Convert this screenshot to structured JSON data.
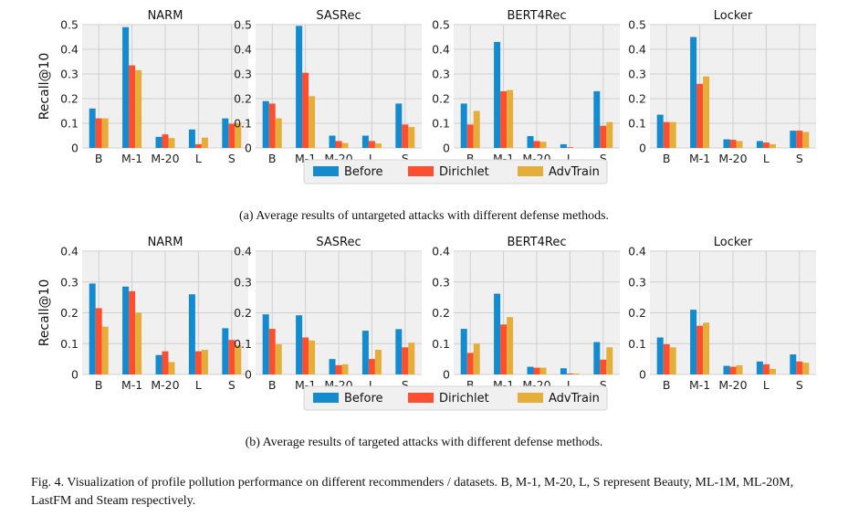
{
  "colors": {
    "Before": "#158bcf",
    "Dirichlet": "#fc4f30",
    "AdvTrain": "#e5ae38",
    "plot_bg": "#f0f0f0",
    "grid": "#cfcfcf"
  },
  "ylabel": "Recall@10",
  "legend": [
    "Before",
    "Dirichlet",
    "AdvTrain"
  ],
  "captions": {
    "a": "(a) Average results of untargeted attacks with different defense methods.",
    "b": "(b) Average results of targeted attacks with different defense methods.",
    "figure": "Fig. 4.  Visualization of profile pollution performance on different recommenders / datasets. B, M-1, M-20, L, S represent Beauty, ML-1M, ML-20M, LastFM and Steam respectively."
  },
  "chart_data": [
    {
      "type": "bar",
      "group": "a",
      "title": "NARM",
      "ylabel": "Recall@10",
      "categories": [
        "B",
        "M-1",
        "M-20",
        "L",
        "S"
      ],
      "ylim": [
        0,
        0.5
      ],
      "yticks": [
        0,
        0.1,
        0.2,
        0.3,
        0.4,
        0.5
      ],
      "series": [
        {
          "name": "Before",
          "values": [
            0.16,
            0.49,
            0.045,
            0.075,
            0.12
          ]
        },
        {
          "name": "Dirichlet",
          "values": [
            0.12,
            0.335,
            0.055,
            0.015,
            0.098
          ]
        },
        {
          "name": "AdvTrain",
          "values": [
            0.12,
            0.315,
            0.04,
            0.042,
            0.102
          ]
        }
      ]
    },
    {
      "type": "bar",
      "group": "a",
      "title": "SASRec",
      "categories": [
        "B",
        "M-1",
        "M-20",
        "L",
        "S"
      ],
      "ylim": [
        0,
        0.5
      ],
      "yticks": [
        0,
        0.1,
        0.2,
        0.3,
        0.4,
        0.5
      ],
      "series": [
        {
          "name": "Before",
          "values": [
            0.19,
            0.495,
            0.05,
            0.05,
            0.18
          ]
        },
        {
          "name": "Dirichlet",
          "values": [
            0.18,
            0.305,
            0.028,
            0.028,
            0.095
          ]
        },
        {
          "name": "AdvTrain",
          "values": [
            0.12,
            0.21,
            0.02,
            0.018,
            0.085
          ]
        }
      ]
    },
    {
      "type": "bar",
      "group": "a",
      "title": "BERT4Rec",
      "categories": [
        "B",
        "M-1",
        "M-20",
        "L",
        "S"
      ],
      "ylim": [
        0,
        0.5
      ],
      "yticks": [
        0,
        0.1,
        0.2,
        0.3,
        0.4,
        0.5
      ],
      "series": [
        {
          "name": "Before",
          "values": [
            0.18,
            0.43,
            0.048,
            0.015,
            0.23
          ]
        },
        {
          "name": "Dirichlet",
          "values": [
            0.095,
            0.23,
            0.028,
            0.003,
            0.09
          ]
        },
        {
          "name": "AdvTrain",
          "values": [
            0.15,
            0.235,
            0.025,
            0.0,
            0.105
          ]
        }
      ]
    },
    {
      "type": "bar",
      "group": "a",
      "title": "Locker",
      "categories": [
        "B",
        "M-1",
        "M-20",
        "L",
        "S"
      ],
      "ylim": [
        0,
        0.5
      ],
      "yticks": [
        0,
        0.1,
        0.2,
        0.3,
        0.4,
        0.5
      ],
      "series": [
        {
          "name": "Before",
          "values": [
            0.135,
            0.45,
            0.035,
            0.028,
            0.07
          ]
        },
        {
          "name": "Dirichlet",
          "values": [
            0.105,
            0.26,
            0.033,
            0.022,
            0.07
          ]
        },
        {
          "name": "AdvTrain",
          "values": [
            0.105,
            0.29,
            0.028,
            0.015,
            0.065
          ]
        }
      ]
    },
    {
      "type": "bar",
      "group": "b",
      "title": "NARM",
      "ylabel": "Recall@10",
      "categories": [
        "B",
        "M-1",
        "M-20",
        "L",
        "S"
      ],
      "ylim": [
        0,
        0.4
      ],
      "yticks": [
        0,
        0.1,
        0.2,
        0.3,
        0.4
      ],
      "series": [
        {
          "name": "Before",
          "values": [
            0.295,
            0.285,
            0.063,
            0.26,
            0.15
          ]
        },
        {
          "name": "Dirichlet",
          "values": [
            0.215,
            0.27,
            0.075,
            0.075,
            0.112
          ]
        },
        {
          "name": "AdvTrain",
          "values": [
            0.155,
            0.2,
            0.04,
            0.08,
            0.095
          ]
        }
      ]
    },
    {
      "type": "bar",
      "group": "b",
      "title": "SASRec",
      "categories": [
        "B",
        "M-1",
        "M-20",
        "L",
        "S"
      ],
      "ylim": [
        0,
        0.4
      ],
      "yticks": [
        0,
        0.1,
        0.2,
        0.3,
        0.4
      ],
      "series": [
        {
          "name": "Before",
          "values": [
            0.195,
            0.192,
            0.05,
            0.142,
            0.147
          ]
        },
        {
          "name": "Dirichlet",
          "values": [
            0.148,
            0.12,
            0.03,
            0.05,
            0.088
          ]
        },
        {
          "name": "AdvTrain",
          "values": [
            0.098,
            0.11,
            0.033,
            0.08,
            0.103
          ]
        }
      ]
    },
    {
      "type": "bar",
      "group": "b",
      "title": "BERT4Rec",
      "categories": [
        "B",
        "M-1",
        "M-20",
        "L",
        "S"
      ],
      "ylim": [
        0,
        0.4
      ],
      "yticks": [
        0,
        0.1,
        0.2,
        0.3,
        0.4
      ],
      "series": [
        {
          "name": "Before",
          "values": [
            0.148,
            0.262,
            0.025,
            0.02,
            0.105
          ]
        },
        {
          "name": "Dirichlet",
          "values": [
            0.07,
            0.162,
            0.022,
            0.003,
            0.048
          ]
        },
        {
          "name": "AdvTrain",
          "values": [
            0.1,
            0.186,
            0.022,
            0.003,
            0.088
          ]
        }
      ]
    },
    {
      "type": "bar",
      "group": "b",
      "title": "Locker",
      "categories": [
        "B",
        "M-1",
        "M-20",
        "L",
        "S"
      ],
      "ylim": [
        0,
        0.4
      ],
      "yticks": [
        0,
        0.1,
        0.2,
        0.3,
        0.4
      ],
      "series": [
        {
          "name": "Before",
          "values": [
            0.12,
            0.21,
            0.028,
            0.042,
            0.065
          ]
        },
        {
          "name": "Dirichlet",
          "values": [
            0.098,
            0.158,
            0.025,
            0.033,
            0.042
          ]
        },
        {
          "name": "AdvTrain",
          "values": [
            0.088,
            0.168,
            0.03,
            0.018,
            0.038
          ]
        }
      ]
    }
  ]
}
